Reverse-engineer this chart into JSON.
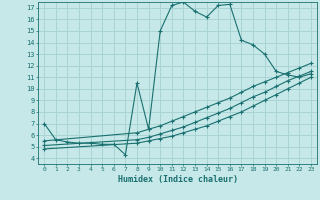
{
  "title": "",
  "xlabel": "Humidex (Indice chaleur)",
  "ylabel": "",
  "bg_color": "#c6e8e8",
  "grid_color": "#aad4d4",
  "line_color": "#1a7070",
  "xlim": [
    -0.5,
    23.5
  ],
  "ylim": [
    3.5,
    17.5
  ],
  "xticks": [
    0,
    1,
    2,
    3,
    4,
    5,
    6,
    7,
    8,
    9,
    10,
    11,
    12,
    13,
    14,
    15,
    16,
    17,
    18,
    19,
    20,
    21,
    22,
    23
  ],
  "yticks": [
    4,
    5,
    6,
    7,
    8,
    9,
    10,
    11,
    12,
    13,
    14,
    15,
    16,
    17
  ],
  "curve1_x": [
    0,
    1,
    2,
    3,
    4,
    5,
    6,
    7,
    8,
    9,
    10,
    11,
    12,
    13,
    14,
    15,
    16,
    17,
    18,
    19,
    20,
    21,
    22,
    23
  ],
  "curve1_y": [
    7.0,
    5.6,
    5.4,
    5.3,
    5.3,
    5.2,
    5.2,
    4.3,
    10.5,
    6.5,
    15.0,
    17.2,
    17.5,
    16.7,
    16.2,
    17.2,
    17.3,
    14.2,
    13.8,
    13.0,
    11.5,
    11.2,
    11.0,
    11.3
  ],
  "curve2_x": [
    0,
    8,
    9,
    10,
    11,
    12,
    13,
    14,
    15,
    16,
    17,
    18,
    19,
    20,
    21,
    22,
    23
  ],
  "curve2_y": [
    4.8,
    5.3,
    5.5,
    5.7,
    5.9,
    6.2,
    6.5,
    6.8,
    7.2,
    7.6,
    8.0,
    8.5,
    9.0,
    9.5,
    10.0,
    10.5,
    11.0
  ],
  "curve3_x": [
    0,
    8,
    9,
    10,
    11,
    12,
    13,
    14,
    15,
    16,
    17,
    18,
    19,
    20,
    21,
    22,
    23
  ],
  "curve3_y": [
    5.1,
    5.6,
    5.8,
    6.1,
    6.4,
    6.7,
    7.1,
    7.5,
    7.9,
    8.3,
    8.8,
    9.3,
    9.7,
    10.2,
    10.7,
    11.1,
    11.5
  ],
  "curve4_x": [
    0,
    8,
    9,
    10,
    11,
    12,
    13,
    14,
    15,
    16,
    17,
    18,
    19,
    20,
    21,
    22,
    23
  ],
  "curve4_y": [
    5.5,
    6.2,
    6.5,
    6.8,
    7.2,
    7.6,
    8.0,
    8.4,
    8.8,
    9.2,
    9.7,
    10.2,
    10.6,
    11.0,
    11.4,
    11.8,
    12.2
  ]
}
